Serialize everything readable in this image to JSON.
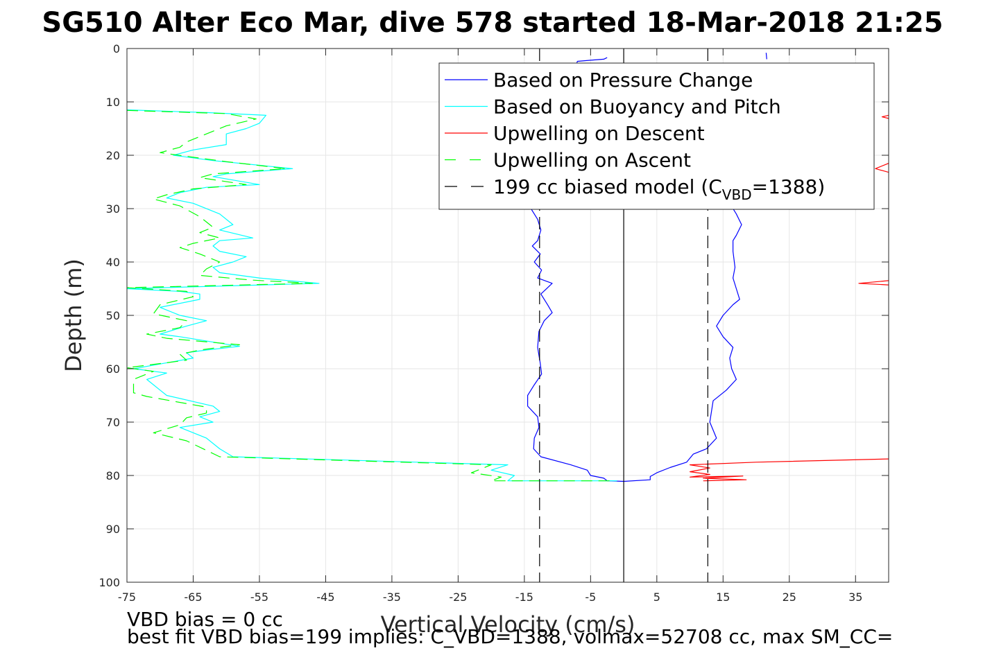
{
  "chart_data": {
    "type": "line",
    "title": "SG510 Alter Eco Mar, dive 578 started 18-Mar-2018 21:25",
    "xlabel": "Vertical Velocity (cm/s)",
    "ylabel": "Depth (m)",
    "xlim": [
      -75,
      40
    ],
    "ylim": [
      0,
      100
    ],
    "y_reversed": true,
    "grid": true,
    "xticks": [
      -75,
      -65,
      -55,
      -45,
      -35,
      -25,
      -15,
      -5,
      5,
      15,
      25,
      35
    ],
    "yticks": [
      0,
      10,
      20,
      30,
      40,
      50,
      60,
      70,
      80,
      90,
      100
    ],
    "legend_position": "top-right",
    "legend": [
      {
        "label": "Based on Pressure Change",
        "color": "#0000ff",
        "style": "solid"
      },
      {
        "label": "Based on Buoyancy and Pitch",
        "color": "#00ffff",
        "style": "solid"
      },
      {
        "label": "Upwelling on Descent",
        "color": "#ff0000",
        "style": "solid"
      },
      {
        "label": "Upwelling on Ascent",
        "color": "#00ff00",
        "style": "dashed"
      },
      {
        "label_main": "199 cc biased model (C",
        "label_sub": "VBD",
        "label_end": "=1388)",
        "color": "#000000",
        "style": "dashed"
      }
    ],
    "series": [
      {
        "name": "Based on Pressure Change",
        "color": "#0000ff",
        "style": "solid",
        "points": [
          [
            -2.5,
            1.7
          ],
          [
            -3,
            2
          ],
          [
            -5,
            2.2
          ],
          [
            -7,
            2.4
          ],
          [
            -14,
            30
          ],
          [
            -13,
            32
          ],
          [
            -12.5,
            34
          ],
          [
            -13,
            36
          ],
          [
            -13.8,
            37
          ],
          [
            -12.6,
            38.5
          ],
          [
            -13.5,
            40
          ],
          [
            -12.4,
            41.5
          ],
          [
            -13,
            43
          ],
          [
            -10.8,
            44
          ],
          [
            -12.5,
            46
          ],
          [
            -11.5,
            48
          ],
          [
            -10.8,
            49.5
          ],
          [
            -12,
            51
          ],
          [
            -12.8,
            53
          ],
          [
            -13,
            56
          ],
          [
            -12.6,
            59
          ],
          [
            -12.4,
            61
          ],
          [
            -13.5,
            63
          ],
          [
            -14.5,
            65
          ],
          [
            -14.5,
            67
          ],
          [
            -13,
            69
          ],
          [
            -12.8,
            71
          ],
          [
            -13.5,
            73
          ],
          [
            -13.6,
            75
          ],
          [
            -12.5,
            76.5
          ],
          [
            -8,
            78
          ],
          [
            -5.5,
            79
          ],
          [
            -5,
            80
          ],
          [
            -3,
            80.5
          ],
          [
            -2.5,
            81
          ],
          [
            0,
            81.1
          ],
          [
            4,
            80.8
          ],
          [
            4,
            80.2
          ],
          [
            5,
            79.5
          ],
          [
            7,
            78.5
          ],
          [
            9.5,
            77.5
          ],
          [
            10.5,
            76
          ],
          [
            12.5,
            75
          ],
          [
            14,
            73
          ],
          [
            13,
            70
          ],
          [
            13.5,
            66
          ],
          [
            15.5,
            64
          ],
          [
            17,
            62
          ],
          [
            16.3,
            60
          ],
          [
            16,
            58
          ],
          [
            16.5,
            56
          ],
          [
            15,
            54
          ],
          [
            14,
            52
          ],
          [
            15,
            50
          ],
          [
            16.5,
            48
          ],
          [
            17.5,
            47
          ],
          [
            17,
            45
          ],
          [
            16.5,
            43
          ],
          [
            16.8,
            41
          ],
          [
            16.5,
            38
          ],
          [
            16.5,
            36
          ],
          [
            17,
            35
          ],
          [
            17.8,
            33
          ],
          [
            17,
            31
          ],
          [
            16,
            29
          ]
        ],
        "top_segment": [
          [
            21.5,
            0.8
          ],
          [
            21.6,
            2
          ]
        ]
      },
      {
        "name": "Based on Buoyancy and Pitch",
        "color": "#00ffff",
        "style": "solid",
        "points": [
          [
            -75,
            11.5
          ],
          [
            -63,
            12
          ],
          [
            -54,
            12.5
          ],
          [
            -55,
            14
          ],
          [
            -57,
            15
          ],
          [
            -60,
            16
          ],
          [
            -60,
            18
          ],
          [
            -65,
            19
          ],
          [
            -68,
            20
          ],
          [
            -62,
            21
          ],
          [
            -50,
            22.5
          ],
          [
            -60,
            23.5
          ],
          [
            -62,
            24
          ],
          [
            -55,
            25.5
          ],
          [
            -63,
            26
          ],
          [
            -67,
            27
          ],
          [
            -69,
            28
          ],
          [
            -65,
            29
          ],
          [
            -61,
            31
          ],
          [
            -59,
            33
          ],
          [
            -61,
            34
          ],
          [
            -56,
            35.5
          ],
          [
            -61,
            36
          ],
          [
            -62,
            37
          ],
          [
            -61,
            38
          ],
          [
            -57,
            39
          ],
          [
            -59,
            40
          ],
          [
            -62,
            41
          ],
          [
            -61,
            42
          ],
          [
            -55,
            43
          ],
          [
            -46,
            44
          ],
          [
            -75,
            45
          ],
          [
            -67,
            45.5
          ],
          [
            -64,
            46
          ],
          [
            -64,
            47
          ],
          [
            -70,
            48.5
          ],
          [
            -67,
            50
          ],
          [
            -63,
            51
          ],
          [
            -66,
            52
          ],
          [
            -70,
            53.5
          ],
          [
            -67,
            54
          ],
          [
            -58,
            55.8
          ],
          [
            -63,
            56.5
          ],
          [
            -66,
            57
          ],
          [
            -65,
            58
          ],
          [
            -74,
            60
          ],
          [
            -69,
            60.8
          ],
          [
            -72,
            62
          ],
          [
            -71,
            63
          ],
          [
            -70,
            64
          ],
          [
            -69,
            65
          ],
          [
            -62,
            67
          ],
          [
            -61,
            68
          ],
          [
            -64,
            69
          ],
          [
            -62,
            70
          ],
          [
            -67,
            71
          ],
          [
            -63,
            73
          ],
          [
            -61,
            75
          ],
          [
            -59,
            76.5
          ],
          [
            -17.5,
            78
          ],
          [
            -20,
            79
          ],
          [
            -16.5,
            80
          ],
          [
            -17.5,
            81
          ],
          [
            -1,
            81
          ]
        ]
      },
      {
        "name": "Upwelling on Descent",
        "color": "#ff0000",
        "style": "solid",
        "segments": [
          [
            [
              40,
              12.5
            ],
            [
              39,
              12.8
            ],
            [
              40,
              13.1
            ]
          ],
          [
            [
              40,
              21.5
            ],
            [
              38,
              22.5
            ],
            [
              40,
              23.2
            ]
          ],
          [
            [
              40,
              43.5
            ],
            [
              35.5,
              44
            ],
            [
              40,
              44.3
            ]
          ],
          [
            [
              40,
              76.9
            ],
            [
              20,
              77.5
            ],
            [
              10,
              78
            ],
            [
              13,
              78.6
            ],
            [
              10,
              79.3
            ],
            [
              13,
              79.8
            ],
            [
              10,
              80.3
            ],
            [
              18,
              80.1
            ],
            [
              12,
              80.5
            ],
            [
              18.5,
              80.8
            ],
            [
              12,
              81
            ]
          ]
        ]
      },
      {
        "name": "Upwelling on Ascent",
        "color": "#00ff00",
        "style": "dashed",
        "points": [
          [
            -75,
            11.6
          ],
          [
            -60,
            12.2
          ],
          [
            -55.5,
            13.2
          ],
          [
            -60,
            14.5
          ],
          [
            -63,
            16
          ],
          [
            -66,
            17.5
          ],
          [
            -67,
            18.5
          ],
          [
            -70,
            19.5
          ],
          [
            -66,
            20.2
          ],
          [
            -60,
            21.2
          ],
          [
            -51,
            22.5
          ],
          [
            -62,
            23.5
          ],
          [
            -64,
            24.2
          ],
          [
            -57,
            25.5
          ],
          [
            -65,
            26.3
          ],
          [
            -69,
            27.4
          ],
          [
            -71,
            28.2
          ],
          [
            -67,
            29.5
          ],
          [
            -64,
            31.5
          ],
          [
            -62,
            33.5
          ],
          [
            -64,
            34.5
          ],
          [
            -61,
            35.5
          ],
          [
            -65,
            36.5
          ],
          [
            -67,
            37.3
          ],
          [
            -64,
            38.5
          ],
          [
            -61,
            40
          ],
          [
            -63,
            41.3
          ],
          [
            -64,
            42.5
          ],
          [
            -56,
            43.4
          ],
          [
            -47,
            44
          ],
          [
            -75,
            44.8
          ],
          [
            -66,
            45.5
          ],
          [
            -65,
            46.5
          ],
          [
            -70,
            48
          ],
          [
            -71,
            49.7
          ],
          [
            -66,
            51
          ],
          [
            -67,
            52.3
          ],
          [
            -72,
            53.5
          ],
          [
            -69,
            54.3
          ],
          [
            -58,
            55.5
          ],
          [
            -64,
            56.5
          ],
          [
            -67,
            57.3
          ],
          [
            -66,
            58.4
          ],
          [
            -75,
            59.8
          ],
          [
            -71,
            60.5
          ],
          [
            -74,
            62
          ],
          [
            -74,
            64.5
          ],
          [
            -72,
            65.2
          ],
          [
            -63,
            67.2
          ],
          [
            -63,
            68.3
          ],
          [
            -66,
            69.2
          ],
          [
            -67,
            70.5
          ],
          [
            -71,
            72
          ],
          [
            -66,
            73.5
          ],
          [
            -63,
            75.3
          ],
          [
            -61,
            76.5
          ],
          [
            -20,
            78
          ],
          [
            -23,
            79.5
          ],
          [
            -18.5,
            80.3
          ],
          [
            -20,
            81
          ],
          [
            -1.5,
            81
          ]
        ]
      },
      {
        "name": "199 cc biased model",
        "color": "#000000",
        "style": "dashed",
        "segments": [
          [
            [
              -12.7,
              0
            ],
            [
              -12.7,
              100
            ]
          ],
          [
            [
              12.7,
              0
            ],
            [
              12.7,
              100
            ]
          ]
        ]
      },
      {
        "name": "zero velocity",
        "color": "#000000",
        "style": "solid",
        "segments": [
          [
            [
              0,
              0
            ],
            [
              0,
              100
            ]
          ]
        ]
      }
    ]
  },
  "notes": {
    "line1": "VBD bias = 0 cc",
    "line2": "best fit VBD bias=199 implies: C_VBD=1388, volmax=52708 cc, max SM_CC="
  }
}
